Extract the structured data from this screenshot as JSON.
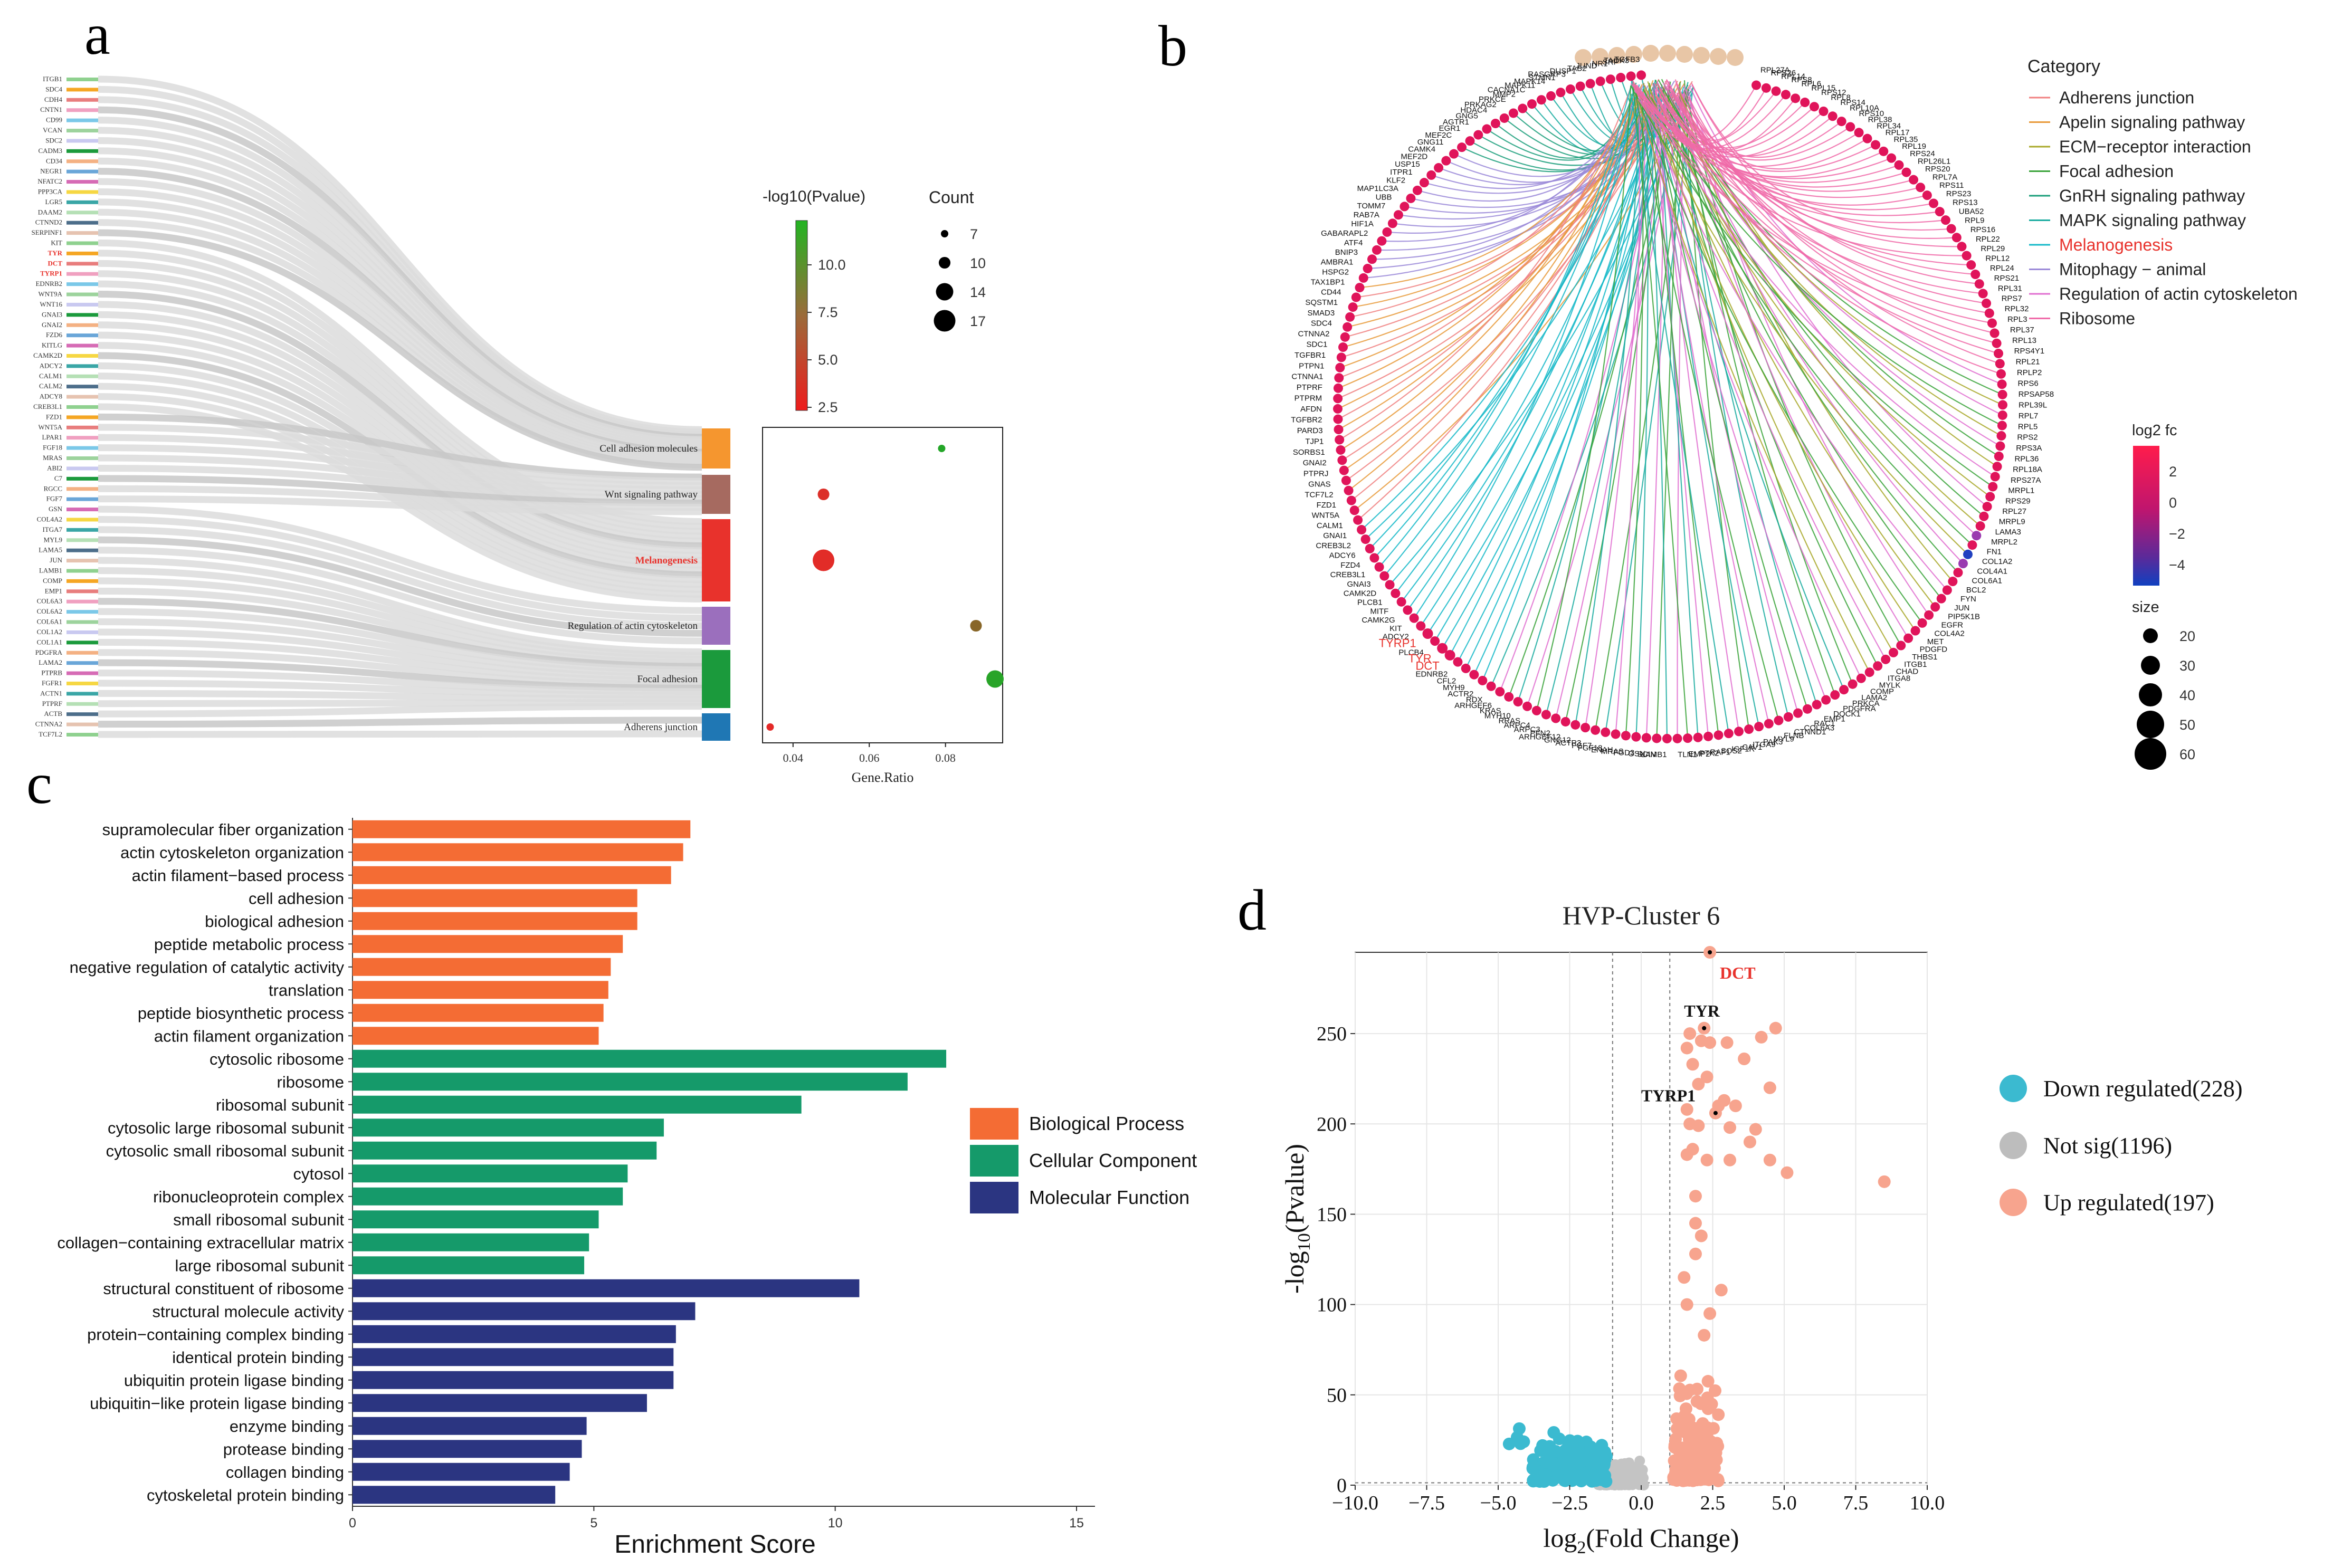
{
  "panel_letters": {
    "a": "a",
    "b": "b",
    "c": "c",
    "d": "d"
  },
  "colors": {
    "orange": "#f46c34",
    "green": "#159a6a",
    "navy": "#2b3581",
    "down": "#3bbad0",
    "notsig": "#bdbdbd",
    "up": "#f7a48e",
    "red": "#e8322c"
  },
  "chart_data": [
    {
      "id": "a",
      "type": "sankey-dotplot",
      "genes": [
        "ITGB1",
        "SDC4",
        "CDH4",
        "CNTN1",
        "CD99",
        "VCAN",
        "SDC2",
        "CADM3",
        "CD34",
        "NEGR1",
        "NFATC2",
        "PPP3CA",
        "LGR5",
        "DAAM2",
        "CTNND2",
        "SERPINF1",
        "KIT",
        "TYR",
        "DCT",
        "TYRP1",
        "EDNRB2",
        "WNT9A",
        "WNT16",
        "GNAI3",
        "GNAI2",
        "FZD6",
        "KITLG",
        "CAMK2D",
        "ADCY2",
        "CALM1",
        "CALM2",
        "ADCY8",
        "CREB3L1",
        "FZD1",
        "WNT5A",
        "LPAR1",
        "FGF18",
        "MRAS",
        "ABI2",
        "C7",
        "RGCC",
        "FGF7",
        "GSN",
        "COL4A2",
        "ITGA7",
        "MYL9",
        "LAMA5",
        "JUN",
        "LAMB1",
        "COMP",
        "EMP1",
        "COL6A3",
        "COL6A2",
        "COL6A1",
        "COL1A2",
        "COL1A1",
        "PDGFRA",
        "LAMA2",
        "PTPRB",
        "FGFR1",
        "ACTN1",
        "PTPRF",
        "ACTB",
        "CTNNA2",
        "TCF7L2"
      ],
      "highlight_genes": [
        "TYR",
        "DCT",
        "TYRP1"
      ],
      "pathways": [
        {
          "name": "Cell adhesion molecules",
          "color": "#f5962f",
          "gene_ratio": 0.079,
          "neg_log10_p": 12.2,
          "count": 7,
          "highlight": false
        },
        {
          "name": "Wnt signaling pathway",
          "color": "#a66a60",
          "gene_ratio": 0.048,
          "neg_log10_p": 2.6,
          "count": 10,
          "highlight": false
        },
        {
          "name": "Melanogenesis",
          "color": "#e8322c",
          "gene_ratio": 0.048,
          "neg_log10_p": 2.3,
          "count": 17,
          "highlight": true
        },
        {
          "name": "Regulation of actin cytoskeleton",
          "color": "#9b6fbd",
          "gene_ratio": 0.088,
          "neg_log10_p": 7.0,
          "count": 10,
          "highlight": false
        },
        {
          "name": "Focal adhesion",
          "color": "#1b9a3c",
          "gene_ratio": 0.093,
          "neg_log10_p": 12.0,
          "count": 14,
          "highlight": false
        },
        {
          "name": "Adherens junction",
          "color": "#1f77b4",
          "gene_ratio": 0.034,
          "neg_log10_p": 2.2,
          "count": 7,
          "highlight": false
        }
      ],
      "color_legend": {
        "title": "-log10(Pvalue)",
        "ticks": [
          "10.0",
          "7.5",
          "5.0",
          "2.5"
        ]
      },
      "size_legend": {
        "title": "Count",
        "values": [
          "7",
          "10",
          "14",
          "17"
        ]
      },
      "x_ticks": [
        "0.04",
        "0.06",
        "0.08"
      ],
      "xlabel": "Gene.Ratio"
    },
    {
      "id": "b",
      "type": "circos-network",
      "legend_title": "Category",
      "categories": [
        {
          "name": "Adherens junction",
          "color": "#f08080"
        },
        {
          "name": "Apelin signaling pathway",
          "color": "#e89a3a"
        },
        {
          "name": "ECM−receptor interaction",
          "color": "#a8a82a"
        },
        {
          "name": "Focal adhesion",
          "color": "#3aa33a"
        },
        {
          "name": "GnRH signaling pathway",
          "color": "#1a9e7a"
        },
        {
          "name": "MAPK signaling pathway",
          "color": "#1aaba0"
        },
        {
          "name": "Melanogenesis",
          "color": "#15b8c8",
          "highlight": true
        },
        {
          "name": "Mitophagy − animal",
          "color": "#9a88d8"
        },
        {
          "name": "Regulation of actin cytoskeleton",
          "color": "#e06ed0"
        },
        {
          "name": "Ribosome",
          "color": "#f06aa8"
        }
      ],
      "fc_legend": {
        "title": "log2 fc",
        "ticks": [
          "2",
          "0",
          "−2",
          "−4"
        ]
      },
      "size_legend": {
        "title": "size",
        "values": [
          "20",
          "30",
          "40",
          "50",
          "60"
        ]
      },
      "highlight_genes": [
        "TYRP1",
        "TYR",
        "DCT"
      ],
      "genes": [
        "TGFB3",
        "TAOK3",
        "SRF",
        "NR1",
        "JUND",
        "TAB2",
        "DUSP1",
        "RASGRP3",
        "STMN1",
        "MAPK14",
        "MAPK11",
        "CACNA1C",
        "MMP2",
        "PRKCE",
        "PRKAG2",
        "HDAC4",
        "GNG5",
        "AGTR1",
        "EGR1",
        "MEF2C",
        "GNG11",
        "CAMK4",
        "MEF2D",
        "USP15",
        "ITPR1",
        "KLF2",
        "MAP1LC3A",
        "UBB",
        "TOMM7",
        "RAB7A",
        "HIF1A",
        "GABARAPL2",
        "ATF4",
        "BNIP3",
        "AMBRA1",
        "HSPG2",
        "TAX1BP1",
        "CD44",
        "SQSTM1",
        "SMAD3",
        "SDC4",
        "CTNNA2",
        "SDC1",
        "TGFBR1",
        "PTPN1",
        "CTNNA1",
        "PTPRF",
        "PTPRM",
        "AFDN",
        "TGFBR2",
        "PARD3",
        "TJP1",
        "SORBS1",
        "GNAI2",
        "PTPRJ",
        "GNAS",
        "TCF7L2",
        "FZD1",
        "WNT5A",
        "CALM1",
        "GNAI1",
        "CREB3L2",
        "ADCY6",
        "FZD4",
        "CREB3L1",
        "GNAI3",
        "CAMK2D",
        "PLCB1",
        "MITF",
        "CAMK2G",
        "KIT",
        "ADCY2",
        "TYRP1",
        "PLCB4",
        "TYR",
        "DCT",
        "EDNRB2",
        "CFL2",
        "MYH9",
        "ACTR2",
        "RDX",
        "ARHGEF6",
        "KRAS",
        "MYH10",
        "RRAS",
        "ARPC4",
        "ARPC3",
        "PFN2",
        "ARHGEF12",
        "GNG12",
        "ACTR3",
        "FGF7",
        "FGF18",
        "ENAH",
        "MRAS",
        "FGD3",
        "GSN",
        "SCIN",
        "LAMB1",
        "TLN1",
        "EMP2",
        "PTK2",
        "RAF1",
        "SOS2",
        "IGF1R",
        "CAV1",
        "ITGA9",
        "PAK3",
        "MYL9",
        "FLNB",
        "CTNND1",
        "COL6A3",
        "RAC1",
        "EMP1",
        "DOCK1",
        "PDGFRA",
        "PRKCA",
        "LAMA2",
        "COMP",
        "MYLK",
        "ITGA8",
        "CHAD",
        "ITGB1",
        "THBS1",
        "PDGFD",
        "MET",
        "COL4A2",
        "EGFR",
        "PIP5K1B",
        "JUN",
        "FYN",
        "BCL2",
        "COL6A1",
        "COL4A1",
        "COL1A2",
        "FN1",
        "MRPL2",
        "LAMA3",
        "MRPL9",
        "RPL27",
        "RPS29",
        "MRPL1",
        "RPS27A",
        "RPL18A",
        "RPL36",
        "RPS3A",
        "RPS2",
        "RPL5",
        "RPL7",
        "RPL39L",
        "RPSAP58",
        "RPS6",
        "RPLP2",
        "RPL21",
        "RPS4Y1",
        "RPL13",
        "RPL37",
        "RPL3",
        "RPL32",
        "RPS7",
        "RPL31",
        "RPS21",
        "RPL24",
        "RPL12",
        "RPL29",
        "RPL22",
        "RPS16",
        "RPL9",
        "UBA52",
        "RPS13",
        "RPS23",
        "RPS11",
        "RPL7A",
        "RPS20",
        "RPL26L1",
        "RPS24",
        "RPL19",
        "RPL35",
        "RPL17",
        "RPL34",
        "RPL38",
        "RPS10",
        "RPL10A",
        "RPS14",
        "RPL8",
        "RPS12",
        "RPL15",
        "RPL6",
        "RPS8",
        "RPL14",
        "RPS26",
        "RPL27A"
      ]
    },
    {
      "id": "c",
      "type": "bar",
      "orientation": "horizontal",
      "xlabel": "Enrichment Score",
      "xlim": [
        0,
        15
      ],
      "x_ticks": [
        "0",
        "5",
        "10",
        "15"
      ],
      "series_legend": [
        {
          "name": "Biological Process",
          "color": "#f46c34"
        },
        {
          "name": "Cellular Component",
          "color": "#159a6a"
        },
        {
          "name": "Molecular Function",
          "color": "#2b3581"
        }
      ],
      "bars": [
        {
          "label": "supramolecular fiber organization",
          "value": 7.0,
          "group": 0
        },
        {
          "label": "actin cytoskeleton organization",
          "value": 6.85,
          "group": 0
        },
        {
          "label": "actin filament−based process",
          "value": 6.6,
          "group": 0
        },
        {
          "label": "cell adhesion",
          "value": 5.9,
          "group": 0
        },
        {
          "label": "biological adhesion",
          "value": 5.9,
          "group": 0
        },
        {
          "label": "peptide metabolic process",
          "value": 5.6,
          "group": 0
        },
        {
          "label": "negative regulation of catalytic activity",
          "value": 5.35,
          "group": 0
        },
        {
          "label": "translation",
          "value": 5.3,
          "group": 0
        },
        {
          "label": "peptide biosynthetic process",
          "value": 5.2,
          "group": 0
        },
        {
          "label": "actin filament organization",
          "value": 5.1,
          "group": 0
        },
        {
          "label": "cytosolic ribosome",
          "value": 12.3,
          "group": 1
        },
        {
          "label": "ribosome",
          "value": 11.5,
          "group": 1
        },
        {
          "label": "ribosomal subunit",
          "value": 9.3,
          "group": 1
        },
        {
          "label": "cytosolic large ribosomal subunit",
          "value": 6.45,
          "group": 1
        },
        {
          "label": "cytosolic small ribosomal subunit",
          "value": 6.3,
          "group": 1
        },
        {
          "label": "cytosol",
          "value": 5.7,
          "group": 1
        },
        {
          "label": "ribonucleoprotein complex",
          "value": 5.6,
          "group": 1
        },
        {
          "label": "small ribosomal subunit",
          "value": 5.1,
          "group": 1
        },
        {
          "label": "collagen−containing extracellular matrix",
          "value": 4.9,
          "group": 1
        },
        {
          "label": "large ribosomal subunit",
          "value": 4.8,
          "group": 1
        },
        {
          "label": "structural constituent of ribosome",
          "value": 10.5,
          "group": 2
        },
        {
          "label": "structural molecule activity",
          "value": 7.1,
          "group": 2
        },
        {
          "label": "protein−containing complex binding",
          "value": 6.7,
          "group": 2
        },
        {
          "label": "identical protein binding",
          "value": 6.65,
          "group": 2
        },
        {
          "label": "ubiquitin protein ligase binding",
          "value": 6.65,
          "group": 2
        },
        {
          "label": "ubiquitin−like protein ligase binding",
          "value": 6.1,
          "group": 2
        },
        {
          "label": "enzyme binding",
          "value": 4.85,
          "group": 2
        },
        {
          "label": "protease binding",
          "value": 4.75,
          "group": 2
        },
        {
          "label": "collagen binding",
          "value": 4.5,
          "group": 2
        },
        {
          "label": "cytoskeletal protein binding",
          "value": 4.2,
          "group": 2
        }
      ]
    },
    {
      "id": "d",
      "type": "scatter",
      "title": "HVP-Cluster 6",
      "xlabel_main": "log",
      "xlabel_sub": "2",
      "xlabel_rest": "(Fold Change)",
      "ylabel_main": "-log",
      "ylabel_sub": "10",
      "ylabel_rest": "(Pvalue)",
      "xlim": [
        -10,
        10
      ],
      "ylim": [
        0,
        295
      ],
      "x_ticks": [
        "−10.0",
        "−7.5",
        "−5.0",
        "−2.5",
        "0.0",
        "2.5",
        "5.0",
        "7.5",
        "10.0"
      ],
      "y_ticks": [
        "0",
        "50",
        "100",
        "150",
        "200",
        "250"
      ],
      "thresholds": {
        "x": [
          -1,
          1
        ]
      },
      "legend": [
        {
          "label": "Down regulated(228)",
          "color": "#3bbad0"
        },
        {
          "label": "Not sig(1196)",
          "color": "#bdbdbd"
        },
        {
          "label": "Up regulated(197)",
          "color": "#f7a48e"
        }
      ],
      "labeled_points": [
        {
          "label": "DCT",
          "x": 2.4,
          "y": 295,
          "color": "#e8322c"
        },
        {
          "label": "TYR",
          "x": 2.2,
          "y": 253,
          "color": "#000000"
        },
        {
          "label": "TYRP1",
          "x": 2.6,
          "y": 206,
          "color": "#000000"
        }
      ]
    }
  ]
}
